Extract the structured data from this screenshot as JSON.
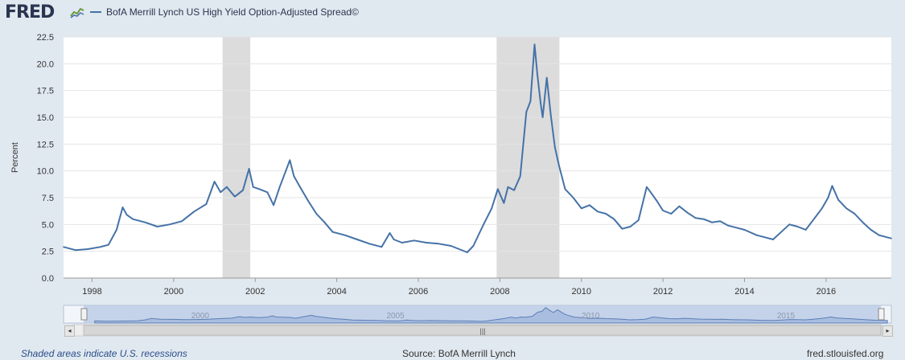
{
  "header": {
    "logo_text": "FRED",
    "logo_icon": "line-chart-icon",
    "legend_label": "BofA Merrill Lynch US High Yield Option-Adjusted Spread©"
  },
  "footer": {
    "note": "Shaded areas indicate U.S. recessions",
    "source": "Source: BofA Merrill Lynch",
    "site": "fred.stlouisfed.org"
  },
  "colors": {
    "line": "#4572a7",
    "recession": "#dcdcdc",
    "navigator": "#a9bde0"
  },
  "chart_data": {
    "type": "line",
    "ylabel": "Percent",
    "ylim": [
      0,
      22.5
    ],
    "yticks": [
      "0.0",
      "2.5",
      "5.0",
      "7.5",
      "10.0",
      "12.5",
      "15.0",
      "17.5",
      "20.0",
      "22.5"
    ],
    "xlim": [
      1997.3,
      2017.6
    ],
    "xticks": [
      "1998",
      "2000",
      "2002",
      "2004",
      "2006",
      "2008",
      "2010",
      "2012",
      "2014",
      "2016"
    ],
    "navigator_ticks": [
      "2000",
      "2005",
      "2010",
      "2015"
    ],
    "recessions": [
      [
        2001.2,
        2001.88
      ],
      [
        2007.92,
        2009.46
      ]
    ],
    "series": [
      {
        "name": "BofA Merrill Lynch US High Yield Option-Adjusted Spread©",
        "x": [
          1997.3,
          1997.6,
          1997.9,
          1998.2,
          1998.4,
          1998.6,
          1998.75,
          1998.85,
          1999.0,
          1999.3,
          1999.6,
          1999.9,
          2000.2,
          2000.5,
          2000.8,
          2001.0,
          2001.15,
          2001.3,
          2001.5,
          2001.7,
          2001.85,
          2001.95,
          2002.1,
          2002.3,
          2002.45,
          2002.6,
          2002.75,
          2002.85,
          2002.95,
          2003.1,
          2003.3,
          2003.5,
          2003.7,
          2003.9,
          2004.2,
          2004.5,
          2004.8,
          2005.1,
          2005.3,
          2005.4,
          2005.6,
          2005.9,
          2006.2,
          2006.5,
          2006.8,
          2007.0,
          2007.2,
          2007.35,
          2007.5,
          2007.6,
          2007.8,
          2007.95,
          2008.1,
          2008.2,
          2008.35,
          2008.5,
          2008.65,
          2008.75,
          2008.85,
          2008.92,
          2009.0,
          2009.05,
          2009.15,
          2009.25,
          2009.35,
          2009.45,
          2009.6,
          2009.8,
          2010.0,
          2010.2,
          2010.4,
          2010.6,
          2010.8,
          2011.0,
          2011.2,
          2011.4,
          2011.6,
          2011.7,
          2011.85,
          2012.0,
          2012.2,
          2012.4,
          2012.6,
          2012.8,
          2013.0,
          2013.2,
          2013.4,
          2013.6,
          2013.8,
          2014.0,
          2014.3,
          2014.5,
          2014.7,
          2014.9,
          2015.1,
          2015.3,
          2015.5,
          2015.7,
          2015.9,
          2016.05,
          2016.15,
          2016.3,
          2016.5,
          2016.7,
          2016.9,
          2017.1,
          2017.3,
          2017.6
        ],
        "values": [
          2.9,
          2.6,
          2.7,
          2.9,
          3.1,
          4.5,
          6.6,
          5.9,
          5.5,
          5.2,
          4.8,
          5.0,
          5.3,
          6.2,
          6.9,
          9.0,
          8.0,
          8.5,
          7.6,
          8.2,
          10.2,
          8.5,
          8.3,
          8.0,
          6.8,
          8.5,
          10.0,
          11.0,
          9.5,
          8.5,
          7.2,
          6.0,
          5.2,
          4.3,
          4.0,
          3.6,
          3.2,
          2.9,
          4.2,
          3.6,
          3.3,
          3.5,
          3.3,
          3.2,
          3.0,
          2.7,
          2.4,
          3.0,
          4.2,
          5.0,
          6.5,
          8.3,
          7.0,
          8.5,
          8.2,
          9.5,
          15.5,
          16.5,
          21.8,
          19.0,
          16.3,
          15.0,
          18.7,
          15.2,
          12.2,
          10.5,
          8.3,
          7.5,
          6.5,
          6.8,
          6.2,
          6.0,
          5.5,
          4.6,
          4.8,
          5.4,
          8.5,
          8.0,
          7.2,
          6.3,
          6.0,
          6.7,
          6.1,
          5.6,
          5.5,
          5.2,
          5.3,
          4.9,
          4.7,
          4.5,
          4.0,
          3.8,
          3.6,
          4.3,
          5.0,
          4.8,
          4.5,
          5.5,
          6.5,
          7.5,
          8.6,
          7.3,
          6.5,
          6.0,
          5.2,
          4.5,
          4.0,
          3.7
        ]
      }
    ]
  }
}
